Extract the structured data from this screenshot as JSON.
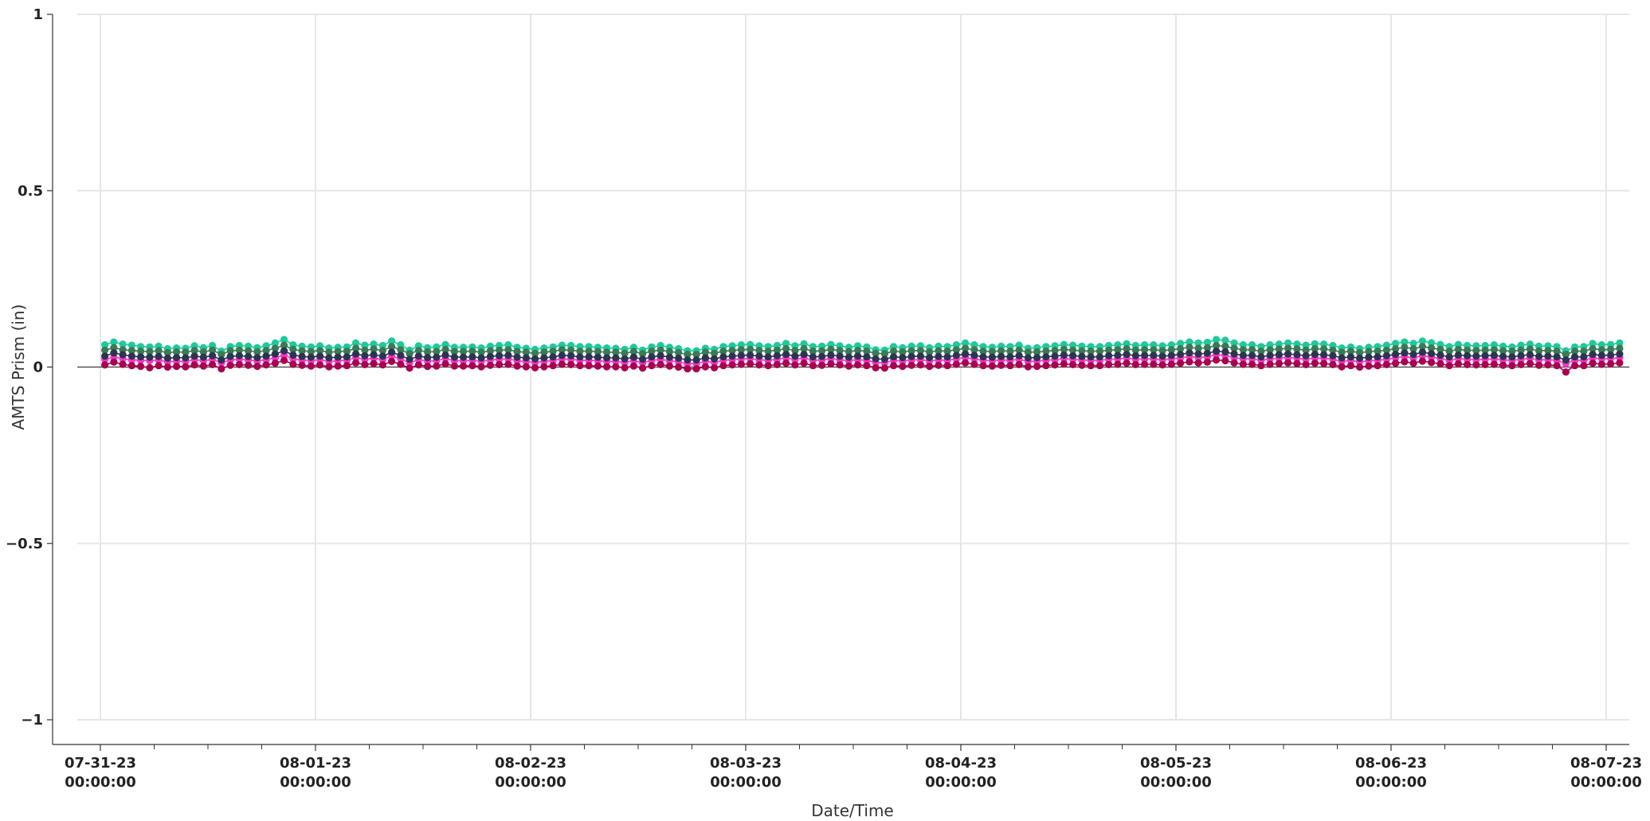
{
  "chart_data": {
    "type": "line",
    "title": "",
    "xlabel": "Date/Time",
    "ylabel": "AMTS Prism (in)",
    "ylim": [
      -1,
      1
    ],
    "xlim": [
      "2023-07-30 22:00",
      "2023-08-07 01:00"
    ],
    "grid": true,
    "legend": "none",
    "y_ticks": [
      {
        "value": 1,
        "label": "1"
      },
      {
        "value": 0.5,
        "label": "0.5"
      },
      {
        "value": 0,
        "label": "0"
      },
      {
        "value": -0.5,
        "label": "−0.5"
      },
      {
        "value": -1,
        "label": "−1"
      }
    ],
    "x_ticks": [
      {
        "date": "2023-07-31 00:00",
        "line1": "07-31-23",
        "line2": "00:00:00"
      },
      {
        "date": "2023-08-01 00:00",
        "line1": "08-01-23",
        "line2": "00:00:00"
      },
      {
        "date": "2023-08-02 00:00",
        "line1": "08-02-23",
        "line2": "00:00:00"
      },
      {
        "date": "2023-08-03 00:00",
        "line1": "08-03-23",
        "line2": "00:00:00"
      },
      {
        "date": "2023-08-04 00:00",
        "line1": "08-04-23",
        "line2": "00:00:00"
      },
      {
        "date": "2023-08-05 00:00",
        "line1": "08-05-23",
        "line2": "00:00:00"
      },
      {
        "date": "2023-08-06 00:00",
        "line1": "08-06-23",
        "line2": "00:00:00"
      },
      {
        "date": "2023-08-07 00:00",
        "line1": "08-07-23",
        "line2": "00:00:00"
      }
    ],
    "minor_x_tick_hours": 6,
    "x_start": "2023-07-31 00:30",
    "x_end": "2023-08-06 23:30",
    "x_count": 168,
    "series": [
      {
        "color": "#1ec99a",
        "values": [
          0.063,
          0.071,
          0.065,
          0.062,
          0.058,
          0.057,
          0.059,
          0.052,
          0.054,
          0.053,
          0.06,
          0.055,
          0.061,
          0.045,
          0.058,
          0.061,
          0.059,
          0.055,
          0.06,
          0.068,
          0.078,
          0.063,
          0.059,
          0.057,
          0.06,
          0.054,
          0.056,
          0.057,
          0.068,
          0.062,
          0.065,
          0.061,
          0.074,
          0.063,
          0.048,
          0.06,
          0.055,
          0.057,
          0.064,
          0.056,
          0.056,
          0.057,
          0.054,
          0.059,
          0.061,
          0.063,
          0.056,
          0.053,
          0.05,
          0.054,
          0.057,
          0.062,
          0.061,
          0.058,
          0.058,
          0.056,
          0.054,
          0.053,
          0.05,
          0.056,
          0.048,
          0.057,
          0.061,
          0.056,
          0.052,
          0.046,
          0.046,
          0.053,
          0.05,
          0.058,
          0.06,
          0.063,
          0.064,
          0.06,
          0.058,
          0.061,
          0.067,
          0.06,
          0.066,
          0.058,
          0.059,
          0.064,
          0.06,
          0.056,
          0.06,
          0.057,
          0.049,
          0.048,
          0.058,
          0.055,
          0.059,
          0.06,
          0.055,
          0.059,
          0.058,
          0.063,
          0.068,
          0.063,
          0.058,
          0.056,
          0.059,
          0.058,
          0.062,
          0.053,
          0.055,
          0.058,
          0.06,
          0.064,
          0.062,
          0.059,
          0.058,
          0.058,
          0.061,
          0.063,
          0.066,
          0.061,
          0.063,
          0.063,
          0.06,
          0.063,
          0.067,
          0.071,
          0.068,
          0.07,
          0.078,
          0.076,
          0.068,
          0.063,
          0.063,
          0.058,
          0.063,
          0.065,
          0.068,
          0.065,
          0.062,
          0.066,
          0.065,
          0.061,
          0.054,
          0.057,
          0.052,
          0.056,
          0.058,
          0.062,
          0.067,
          0.071,
          0.067,
          0.074,
          0.069,
          0.064,
          0.058,
          0.064,
          0.061,
          0.06,
          0.061,
          0.063,
          0.059,
          0.057,
          0.062,
          0.065,
          0.059,
          0.06,
          0.058,
          0.046,
          0.057,
          0.058,
          0.067,
          0.063,
          0.064,
          0.068
        ]
      },
      {
        "color": "#3a7a55",
        "values": [
          0.048,
          0.055,
          0.049,
          0.047,
          0.045,
          0.044,
          0.046,
          0.041,
          0.043,
          0.042,
          0.047,
          0.043,
          0.048,
          0.036,
          0.046,
          0.048,
          0.046,
          0.043,
          0.047,
          0.053,
          0.062,
          0.05,
          0.046,
          0.044,
          0.047,
          0.042,
          0.044,
          0.045,
          0.053,
          0.048,
          0.051,
          0.047,
          0.058,
          0.049,
          0.038,
          0.047,
          0.043,
          0.044,
          0.05,
          0.044,
          0.044,
          0.045,
          0.042,
          0.046,
          0.048,
          0.049,
          0.044,
          0.042,
          0.039,
          0.042,
          0.045,
          0.049,
          0.048,
          0.045,
          0.045,
          0.044,
          0.042,
          0.042,
          0.039,
          0.044,
          0.038,
          0.045,
          0.048,
          0.044,
          0.041,
          0.036,
          0.036,
          0.042,
          0.039,
          0.045,
          0.047,
          0.049,
          0.05,
          0.047,
          0.045,
          0.048,
          0.052,
          0.047,
          0.052,
          0.045,
          0.046,
          0.05,
          0.047,
          0.044,
          0.047,
          0.045,
          0.039,
          0.038,
          0.045,
          0.043,
          0.046,
          0.047,
          0.043,
          0.046,
          0.045,
          0.049,
          0.053,
          0.049,
          0.045,
          0.044,
          0.046,
          0.045,
          0.048,
          0.042,
          0.043,
          0.045,
          0.047,
          0.05,
          0.048,
          0.046,
          0.045,
          0.045,
          0.048,
          0.049,
          0.052,
          0.048,
          0.049,
          0.049,
          0.047,
          0.049,
          0.052,
          0.056,
          0.053,
          0.055,
          0.061,
          0.059,
          0.053,
          0.049,
          0.049,
          0.045,
          0.049,
          0.051,
          0.053,
          0.051,
          0.048,
          0.052,
          0.051,
          0.048,
          0.042,
          0.045,
          0.041,
          0.044,
          0.045,
          0.048,
          0.052,
          0.056,
          0.052,
          0.058,
          0.054,
          0.05,
          0.045,
          0.05,
          0.048,
          0.047,
          0.048,
          0.049,
          0.046,
          0.045,
          0.048,
          0.051,
          0.046,
          0.047,
          0.045,
          0.036,
          0.045,
          0.045,
          0.052,
          0.049,
          0.05,
          0.053
        ]
      },
      {
        "color": "#ff33cc",
        "values": [
          0.022,
          0.028,
          0.024,
          0.02,
          0.019,
          0.018,
          0.02,
          0.015,
          0.017,
          0.016,
          0.021,
          0.018,
          0.022,
          0.012,
          0.02,
          0.022,
          0.02,
          0.017,
          0.021,
          0.026,
          0.034,
          0.023,
          0.02,
          0.018,
          0.021,
          0.016,
          0.018,
          0.019,
          0.027,
          0.022,
          0.025,
          0.021,
          0.031,
          0.023,
          0.012,
          0.021,
          0.017,
          0.018,
          0.024,
          0.018,
          0.018,
          0.019,
          0.016,
          0.02,
          0.022,
          0.023,
          0.018,
          0.016,
          0.013,
          0.016,
          0.019,
          0.023,
          0.022,
          0.019,
          0.019,
          0.018,
          0.016,
          0.016,
          0.013,
          0.018,
          0.012,
          0.019,
          0.022,
          0.018,
          0.015,
          0.01,
          0.01,
          0.016,
          0.013,
          0.019,
          0.021,
          0.023,
          0.024,
          0.021,
          0.019,
          0.022,
          0.026,
          0.021,
          0.026,
          0.019,
          0.02,
          0.024,
          0.021,
          0.018,
          0.021,
          0.019,
          0.013,
          0.012,
          0.019,
          0.017,
          0.02,
          0.021,
          0.017,
          0.02,
          0.019,
          0.023,
          0.027,
          0.023,
          0.019,
          0.018,
          0.02,
          0.019,
          0.022,
          0.016,
          0.017,
          0.019,
          0.021,
          0.024,
          0.022,
          0.02,
          0.019,
          0.019,
          0.022,
          0.023,
          0.026,
          0.022,
          0.023,
          0.023,
          0.021,
          0.023,
          0.026,
          0.03,
          0.027,
          0.029,
          0.035,
          0.033,
          0.027,
          0.023,
          0.023,
          0.019,
          0.023,
          0.025,
          0.027,
          0.025,
          0.022,
          0.026,
          0.025,
          0.022,
          0.016,
          0.019,
          0.015,
          0.018,
          0.019,
          0.022,
          0.026,
          0.03,
          0.026,
          0.032,
          0.028,
          0.024,
          0.019,
          0.024,
          0.022,
          0.021,
          0.022,
          0.023,
          0.02,
          0.019,
          0.022,
          0.025,
          0.02,
          0.021,
          0.019,
          0.01,
          0.019,
          0.019,
          0.026,
          0.023,
          0.024,
          0.027
        ]
      },
      {
        "color": "#2b3550",
        "values": [
          0.031,
          0.04,
          0.035,
          0.031,
          0.029,
          0.028,
          0.03,
          0.025,
          0.027,
          0.026,
          0.031,
          0.028,
          0.032,
          0.02,
          0.03,
          0.032,
          0.03,
          0.027,
          0.031,
          0.037,
          0.046,
          0.034,
          0.03,
          0.028,
          0.031,
          0.026,
          0.028,
          0.029,
          0.037,
          0.032,
          0.035,
          0.031,
          0.042,
          0.033,
          0.022,
          0.031,
          0.027,
          0.028,
          0.034,
          0.028,
          0.028,
          0.029,
          0.026,
          0.03,
          0.032,
          0.033,
          0.028,
          0.026,
          0.023,
          0.026,
          0.029,
          0.033,
          0.032,
          0.029,
          0.029,
          0.028,
          0.026,
          0.026,
          0.023,
          0.028,
          0.022,
          0.029,
          0.032,
          0.028,
          0.025,
          0.02,
          0.02,
          0.026,
          0.023,
          0.029,
          0.031,
          0.033,
          0.034,
          0.031,
          0.029,
          0.032,
          0.036,
          0.031,
          0.036,
          0.029,
          0.03,
          0.034,
          0.031,
          0.028,
          0.031,
          0.029,
          0.023,
          0.022,
          0.029,
          0.027,
          0.03,
          0.031,
          0.027,
          0.03,
          0.029,
          0.033,
          0.037,
          0.033,
          0.029,
          0.028,
          0.03,
          0.029,
          0.032,
          0.026,
          0.027,
          0.029,
          0.031,
          0.034,
          0.032,
          0.03,
          0.029,
          0.029,
          0.032,
          0.033,
          0.036,
          0.032,
          0.033,
          0.033,
          0.031,
          0.033,
          0.036,
          0.04,
          0.037,
          0.039,
          0.045,
          0.043,
          0.037,
          0.033,
          0.033,
          0.029,
          0.033,
          0.035,
          0.037,
          0.035,
          0.032,
          0.036,
          0.035,
          0.032,
          0.026,
          0.029,
          0.025,
          0.028,
          0.029,
          0.032,
          0.036,
          0.04,
          0.036,
          0.042,
          0.038,
          0.034,
          0.029,
          0.034,
          0.032,
          0.031,
          0.032,
          0.033,
          0.03,
          0.029,
          0.032,
          0.035,
          0.03,
          0.031,
          0.029,
          0.02,
          0.029,
          0.029,
          0.036,
          0.033,
          0.034,
          0.037
        ]
      },
      {
        "color": "#a8004f",
        "values": [
          0.006,
          0.014,
          0.008,
          0.004,
          0.002,
          -0.002,
          0.004,
          0.0,
          0.002,
          0.001,
          0.006,
          0.003,
          0.007,
          -0.005,
          0.005,
          0.007,
          0.005,
          0.002,
          0.006,
          0.011,
          0.019,
          0.008,
          0.005,
          0.003,
          0.006,
          0.001,
          0.003,
          0.004,
          0.012,
          0.007,
          0.01,
          0.006,
          0.016,
          0.008,
          -0.003,
          0.006,
          0.002,
          0.003,
          0.009,
          0.003,
          0.003,
          0.004,
          0.001,
          0.005,
          0.007,
          0.008,
          0.003,
          0.001,
          -0.002,
          0.001,
          0.004,
          0.008,
          0.007,
          0.004,
          0.004,
          0.003,
          0.001,
          0.001,
          -0.002,
          0.003,
          -0.003,
          0.004,
          0.007,
          0.003,
          0.0,
          -0.005,
          -0.005,
          0.001,
          -0.002,
          0.004,
          0.006,
          0.008,
          0.009,
          0.006,
          0.004,
          0.007,
          0.011,
          0.006,
          0.011,
          0.004,
          0.005,
          0.009,
          0.006,
          0.003,
          0.006,
          0.004,
          -0.002,
          -0.003,
          0.004,
          0.002,
          0.005,
          0.006,
          0.002,
          0.005,
          0.004,
          0.008,
          0.012,
          0.008,
          0.004,
          0.003,
          0.005,
          0.004,
          0.007,
          0.001,
          0.002,
          0.004,
          0.006,
          0.009,
          0.007,
          0.005,
          0.004,
          0.004,
          0.007,
          0.008,
          0.011,
          0.007,
          0.008,
          0.008,
          0.006,
          0.008,
          0.011,
          0.015,
          0.012,
          0.014,
          0.02,
          0.018,
          0.012,
          0.008,
          0.008,
          0.004,
          0.008,
          0.01,
          0.012,
          0.01,
          0.007,
          0.011,
          0.01,
          0.007,
          0.001,
          0.004,
          0.0,
          0.003,
          0.004,
          0.007,
          0.011,
          0.015,
          0.011,
          0.017,
          0.013,
          0.009,
          0.004,
          0.009,
          0.007,
          0.006,
          0.007,
          0.008,
          0.005,
          0.004,
          0.007,
          0.01,
          0.005,
          0.006,
          0.004,
          -0.014,
          0.004,
          0.004,
          0.011,
          0.008,
          0.009,
          0.012
        ]
      }
    ]
  }
}
